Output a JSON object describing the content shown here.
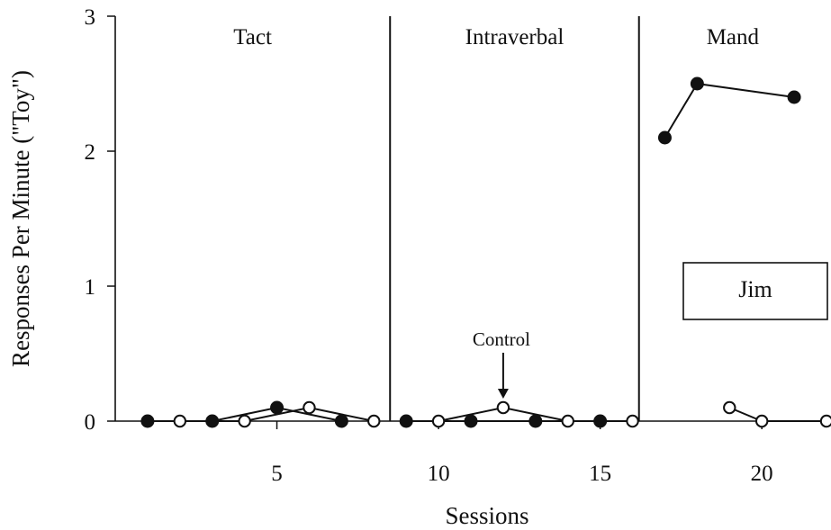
{
  "chart_data": {
    "type": "line",
    "title": "",
    "xlabel": "Sessions",
    "ylabel": "Responses Per Minute (\"Toy\")",
    "xlim": [
      0,
      22
    ],
    "ylim": [
      0,
      3
    ],
    "x_ticks": [
      5,
      10,
      15,
      20
    ],
    "y_ticks": [
      0,
      1,
      2,
      3
    ],
    "grid": false,
    "phases": [
      {
        "label": "Tact",
        "start": 0,
        "end": 8.5
      },
      {
        "label": "Intraverbal",
        "start": 8.5,
        "end": 16.2
      },
      {
        "label": "Mand",
        "start": 16.2,
        "end": 22
      }
    ],
    "phase_lines": [
      8.5,
      16.2
    ],
    "series": [
      {
        "marker": "filled-circle",
        "segments": [
          [
            {
              "x": 1,
              "y": 0
            },
            {
              "x": 3,
              "y": 0
            },
            {
              "x": 5,
              "y": 0.1
            },
            {
              "x": 7,
              "y": 0
            }
          ],
          [
            {
              "x": 9,
              "y": 0
            },
            {
              "x": 11,
              "y": 0
            },
            {
              "x": 13,
              "y": 0
            },
            {
              "x": 15,
              "y": 0
            }
          ],
          [
            {
              "x": 17,
              "y": 2.1
            },
            {
              "x": 18,
              "y": 2.5
            },
            {
              "x": 21,
              "y": 2.4
            }
          ]
        ]
      },
      {
        "marker": "open-circle",
        "segments": [
          [
            {
              "x": 2,
              "y": 0
            },
            {
              "x": 4,
              "y": 0
            },
            {
              "x": 6,
              "y": 0.1
            },
            {
              "x": 8,
              "y": 0
            }
          ],
          [
            {
              "x": 10,
              "y": 0
            },
            {
              "x": 12,
              "y": 0.1
            },
            {
              "x": 14,
              "y": 0
            },
            {
              "x": 16,
              "y": 0
            }
          ],
          [
            {
              "x": 19,
              "y": 0.1
            },
            {
              "x": 20,
              "y": 0
            },
            {
              "x": 22,
              "y": 0
            }
          ]
        ]
      }
    ],
    "annotations": [
      {
        "text": "Control",
        "x": 12,
        "y": 0.1,
        "arrow": true
      }
    ],
    "legend_box": {
      "text": "Jim"
    }
  }
}
